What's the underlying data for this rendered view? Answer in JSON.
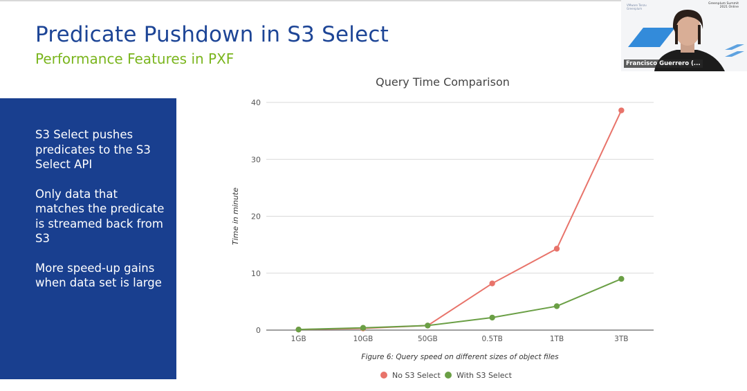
{
  "slide": {
    "title": "Predicate Pushdown in S3 Select",
    "subtitle": "Performance Features in PXF",
    "bullets": [
      "S3 Select pushes predicates to the S3 Select API",
      "Only data that matches the predicate is streamed back from S3",
      "More speed-up gains when data set is large"
    ]
  },
  "video": {
    "speaker_name": "Francisco Guerrero (...",
    "logo_left_lines": [
      "VMware Tanzu",
      "Greenplum"
    ],
    "logo_right_lines": [
      "Greenplum Summit",
      "2021 Online"
    ]
  },
  "colors": {
    "title": "#1d4596",
    "subtitle": "#7ab51d",
    "panel": "#193f8f",
    "no_s3_select": "#e8736a",
    "with_s3_select": "#6a9f45"
  },
  "chart_data": {
    "type": "line",
    "title": "Query Time Comparison",
    "caption": "Figure 6: Query speed on different sizes of object files",
    "xlabel": "",
    "ylabel": "Time in minute",
    "categories": [
      "1GB",
      "10GB",
      "50GB",
      "0.5TB",
      "1TB",
      "3TB"
    ],
    "ylim": [
      0,
      40
    ],
    "yticks": [
      0,
      10,
      20,
      30,
      40
    ],
    "grid": true,
    "legend_position": "bottom",
    "series": [
      {
        "name": "No S3 Select",
        "color": "#e8736a",
        "values": [
          0.1,
          0.3,
          0.8,
          8.2,
          14.3,
          38.6
        ]
      },
      {
        "name": "With S3 Select",
        "color": "#6a9f45",
        "values": [
          0.1,
          0.4,
          0.8,
          2.2,
          4.2,
          9.0
        ]
      }
    ]
  }
}
